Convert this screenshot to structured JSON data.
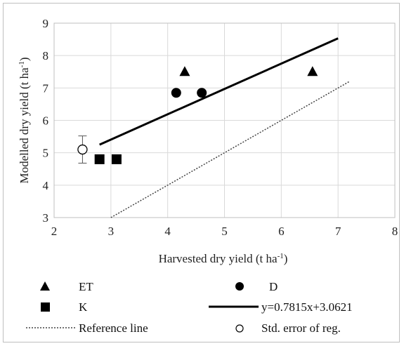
{
  "chart_data": {
    "type": "scatter",
    "xlabel_main": "Harvested dry yield (t ha",
    "xlabel_sup": "-1",
    "xlabel_end": ")",
    "ylabel_main": "Modelled dry yield (t ha",
    "ylabel_sup": "-1",
    "ylabel_end": ")",
    "xlim": [
      2,
      8
    ],
    "ylim": [
      3,
      9
    ],
    "x_ticks": [
      "2",
      "3",
      "4",
      "5",
      "6",
      "7",
      "8"
    ],
    "y_ticks": [
      "3",
      "4",
      "5",
      "6",
      "7",
      "8",
      "9"
    ],
    "grid": true,
    "legend_position": "bottom",
    "series": [
      {
        "name": "ET",
        "marker": "triangle",
        "points": [
          [
            4.3,
            7.5
          ],
          [
            6.55,
            7.5
          ]
        ]
      },
      {
        "name": "D",
        "marker": "circle",
        "points": [
          [
            4.15,
            6.85
          ],
          [
            4.6,
            6.85
          ]
        ]
      },
      {
        "name": "K",
        "marker": "square",
        "points": [
          [
            2.8,
            4.8
          ],
          [
            3.1,
            4.8
          ]
        ]
      }
    ],
    "regression": {
      "label": "y=0.7815x+3.0621",
      "slope": 0.7815,
      "intercept": 3.0621,
      "x_range": [
        2.8,
        7.0
      ]
    },
    "reference_line": {
      "label": "Reference line",
      "x_range": [
        3.0,
        7.2
      ]
    },
    "std_error": {
      "label": "Std. error of reg.",
      "x": 2.5,
      "y": 5.1,
      "err": 0.42
    }
  }
}
